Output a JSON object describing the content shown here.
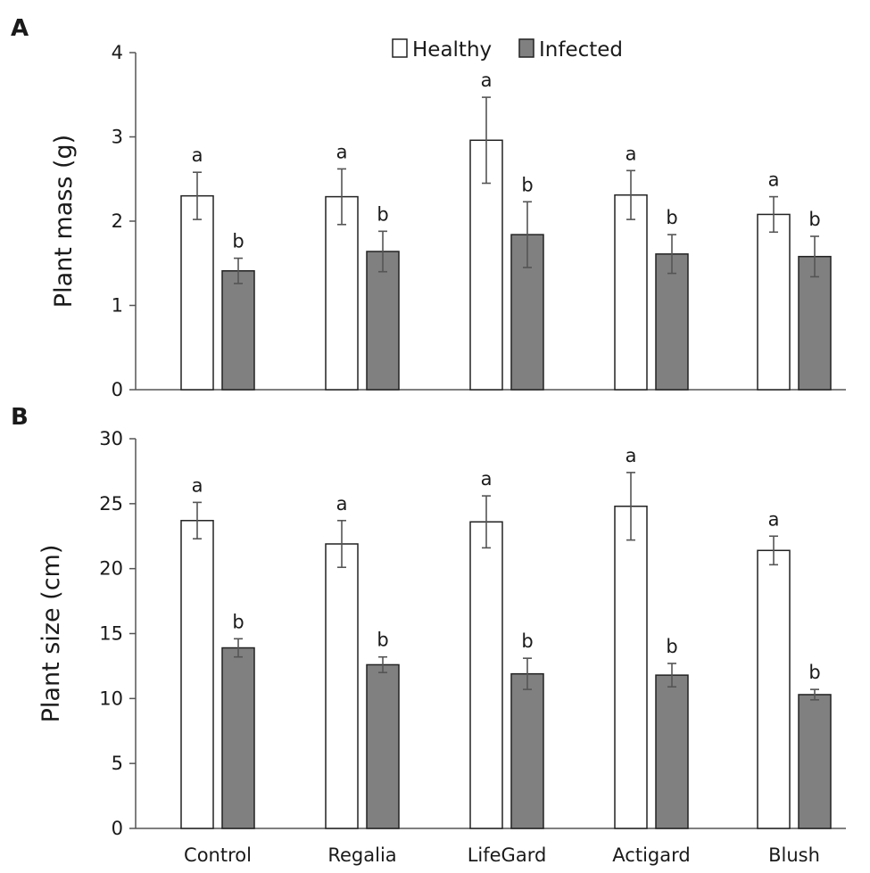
{
  "legend": {
    "healthy_label": "Healthy",
    "infected_label": "Infected"
  },
  "colors": {
    "healthy": "#ffffff",
    "infected": "#808080",
    "bar_stroke": "#222222",
    "axis": "#555555",
    "error_bar": "#555555"
  },
  "chart_data": [
    {
      "type": "bar",
      "panel_label": "A",
      "ylabel": "Plant mass (g)",
      "xlabel": "",
      "ylim": [
        0,
        4
      ],
      "yticks": [
        0,
        1,
        2,
        3,
        4
      ],
      "categories": [
        "Control",
        "Regalia",
        "LifeGard",
        "Actigard",
        "Blush"
      ],
      "show_category_labels": false,
      "series": [
        {
          "name": "Healthy",
          "values": [
            2.3,
            2.29,
            2.96,
            2.31,
            2.08
          ],
          "errors": [
            0.28,
            0.33,
            0.51,
            0.29,
            0.21
          ],
          "letters": [
            "a",
            "a",
            "a",
            "a",
            "a"
          ]
        },
        {
          "name": "Infected",
          "values": [
            1.41,
            1.64,
            1.84,
            1.61,
            1.58
          ],
          "errors": [
            0.15,
            0.24,
            0.39,
            0.23,
            0.24
          ],
          "letters": [
            "b",
            "b",
            "b",
            "b",
            "b"
          ]
        }
      ]
    },
    {
      "type": "bar",
      "panel_label": "B",
      "ylabel": "Plant size (cm)",
      "xlabel": "",
      "ylim": [
        0,
        30
      ],
      "yticks": [
        0,
        5,
        10,
        15,
        20,
        25,
        30
      ],
      "categories": [
        "Control",
        "Regalia",
        "LifeGard",
        "Actigard",
        "Blush"
      ],
      "show_category_labels": true,
      "series": [
        {
          "name": "Healthy",
          "values": [
            23.7,
            21.9,
            23.6,
            24.8,
            21.4
          ],
          "errors": [
            1.4,
            1.8,
            2.0,
            2.6,
            1.1
          ],
          "letters": [
            "a",
            "a",
            "a",
            "a",
            "a"
          ]
        },
        {
          "name": "Infected",
          "values": [
            13.9,
            12.6,
            11.9,
            11.8,
            10.3
          ],
          "errors": [
            0.7,
            0.6,
            1.2,
            0.9,
            0.4
          ],
          "letters": [
            "b",
            "b",
            "b",
            "b",
            "b"
          ]
        }
      ]
    }
  ]
}
